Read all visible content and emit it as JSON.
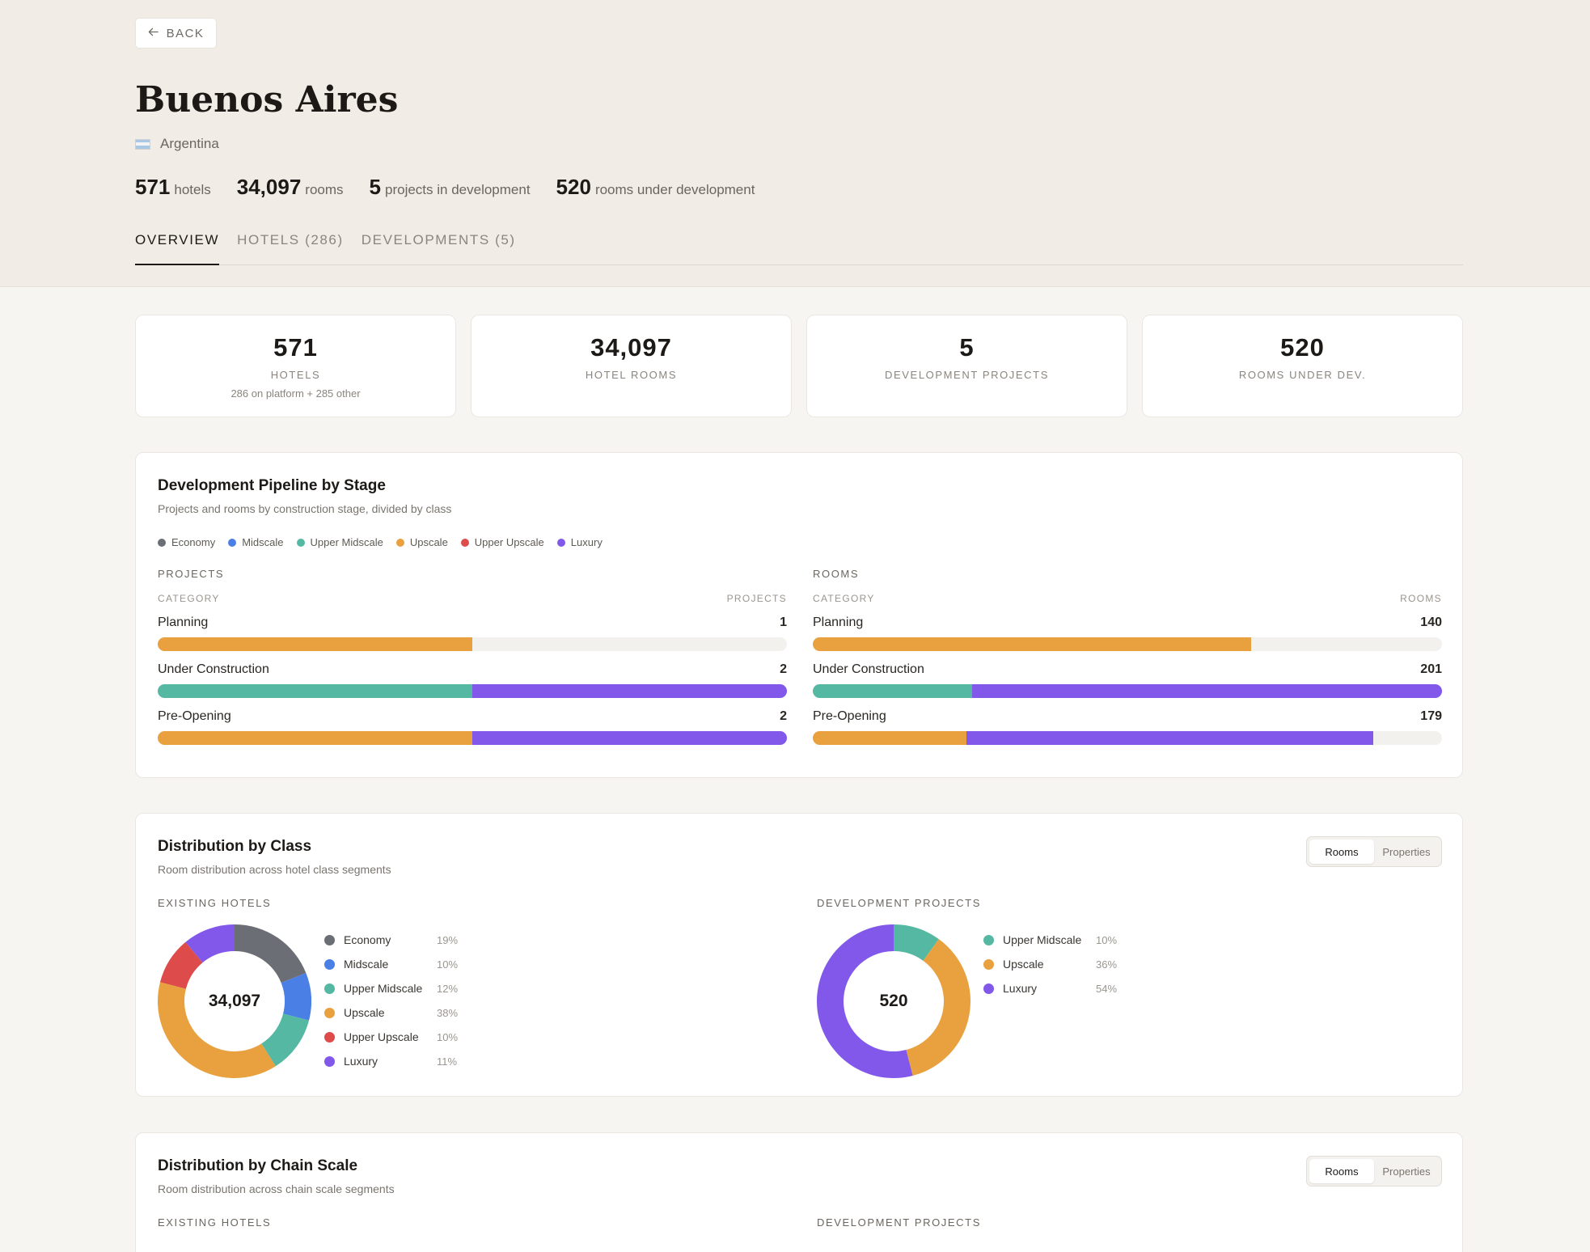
{
  "colors": {
    "economy": "#6b6e74",
    "midscale": "#4a7fe6",
    "upper_midscale": "#55b8a2",
    "upscale": "#e9a13f",
    "upper_upscale": "#dd4b4a",
    "luxury": "#8158e9"
  },
  "header": {
    "back_label": "BACK",
    "city": "Buenos Aires",
    "country": "Argentina",
    "stats": [
      {
        "num": "571",
        "label": "hotels"
      },
      {
        "num": "34,097",
        "label": "rooms"
      },
      {
        "num": "5",
        "label": "projects in development"
      },
      {
        "num": "520",
        "label": "rooms under development"
      }
    ],
    "tabs": [
      {
        "label": "OVERVIEW",
        "active": true
      },
      {
        "label": "HOTELS (286)",
        "active": false
      },
      {
        "label": "DEVELOPMENTS (5)",
        "active": false
      }
    ]
  },
  "kpis": [
    {
      "value": "571",
      "label": "HOTELS",
      "sub": "286 on platform + 285 other"
    },
    {
      "value": "34,097",
      "label": "HOTEL ROOMS",
      "sub": ""
    },
    {
      "value": "5",
      "label": "DEVELOPMENT PROJECTS",
      "sub": ""
    },
    {
      "value": "520",
      "label": "ROOMS UNDER DEV.",
      "sub": ""
    }
  ],
  "pipeline": {
    "title": "Development Pipeline by Stage",
    "subtitle": "Projects and rooms by construction stage, divided by class",
    "legend": [
      "Economy",
      "Midscale",
      "Upper Midscale",
      "Upscale",
      "Upper Upscale",
      "Luxury"
    ],
    "projects": {
      "heading": "PROJECTS",
      "col_left": "CATEGORY",
      "col_right": "PROJECTS",
      "max": 2,
      "rows": [
        {
          "label": "Planning",
          "total": "1",
          "segments": [
            {
              "class": "upscale",
              "value": 1
            }
          ]
        },
        {
          "label": "Under Construction",
          "total": "2",
          "segments": [
            {
              "class": "upper_midscale",
              "value": 1
            },
            {
              "class": "luxury",
              "value": 1
            }
          ]
        },
        {
          "label": "Pre-Opening",
          "total": "2",
          "segments": [
            {
              "class": "upscale",
              "value": 1
            },
            {
              "class": "luxury",
              "value": 1
            }
          ]
        }
      ]
    },
    "rooms": {
      "heading": "ROOMS",
      "col_left": "CATEGORY",
      "col_right": "ROOMS",
      "max": 201,
      "rows": [
        {
          "label": "Planning",
          "total": "140",
          "segments": [
            {
              "class": "upscale",
              "value": 140
            }
          ]
        },
        {
          "label": "Under Construction",
          "total": "201",
          "segments": [
            {
              "class": "upper_midscale",
              "value": 51
            },
            {
              "class": "luxury",
              "value": 150
            }
          ]
        },
        {
          "label": "Pre-Opening",
          "total": "179",
          "segments": [
            {
              "class": "upscale",
              "value": 49
            },
            {
              "class": "luxury",
              "value": 130
            }
          ]
        }
      ]
    }
  },
  "class_dist": {
    "title": "Distribution by Class",
    "subtitle": "Room distribution across hotel class segments",
    "toggle": [
      "Rooms",
      "Properties"
    ],
    "existing": {
      "heading": "EXISTING HOTELS",
      "center": "34,097",
      "slices": [
        {
          "name": "Economy",
          "class": "economy",
          "pct": 19,
          "pct_label": "19%"
        },
        {
          "name": "Midscale",
          "class": "midscale",
          "pct": 10,
          "pct_label": "10%"
        },
        {
          "name": "Upper Midscale",
          "class": "upper_midscale",
          "pct": 12,
          "pct_label": "12%"
        },
        {
          "name": "Upscale",
          "class": "upscale",
          "pct": 38,
          "pct_label": "38%"
        },
        {
          "name": "Upper Upscale",
          "class": "upper_upscale",
          "pct": 10,
          "pct_label": "10%"
        },
        {
          "name": "Luxury",
          "class": "luxury",
          "pct": 11,
          "pct_label": "11%"
        }
      ]
    },
    "development": {
      "heading": "DEVELOPMENT PROJECTS",
      "center": "520",
      "slices": [
        {
          "name": "Upper Midscale",
          "class": "upper_midscale",
          "pct": 10,
          "pct_label": "10%"
        },
        {
          "name": "Upscale",
          "class": "upscale",
          "pct": 36,
          "pct_label": "36%"
        },
        {
          "name": "Luxury",
          "class": "luxury",
          "pct": 54,
          "pct_label": "54%"
        }
      ]
    }
  },
  "chain_dist": {
    "title": "Distribution by Chain Scale",
    "subtitle": "Room distribution across chain scale segments",
    "toggle": [
      "Rooms",
      "Properties"
    ],
    "existing_heading": "EXISTING HOTELS",
    "development_heading": "DEVELOPMENT PROJECTS"
  }
}
